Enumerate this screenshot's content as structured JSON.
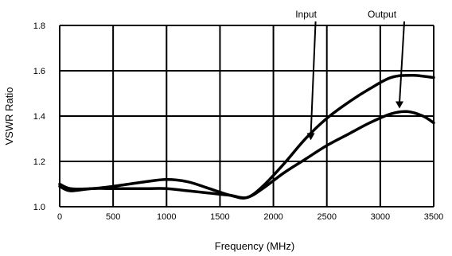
{
  "chart_data": {
    "type": "line",
    "xlabel": "Frequency (MHz)",
    "ylabel": "VSWR Ratio",
    "xlim": [
      0,
      3500
    ],
    "ylim": [
      1.0,
      1.8
    ],
    "xticks": [
      0,
      500,
      1000,
      1500,
      2000,
      2500,
      3000,
      3500
    ],
    "yticks": [
      1.0,
      1.2,
      1.4,
      1.6,
      1.8
    ],
    "xtick_labels": [
      "0",
      "500",
      "1000",
      "1500",
      "2000",
      "2500",
      "3000",
      "3500"
    ],
    "ytick_labels": [
      "1.0",
      "1.2",
      "1.4",
      "1.6",
      "1.8"
    ],
    "grid": true,
    "series": [
      {
        "name": "Input",
        "x": [
          0,
          100,
          300,
          500,
          800,
          1000,
          1200,
          1400,
          1600,
          1750,
          1900,
          2100,
          2300,
          2500,
          2700,
          2900,
          3100,
          3300,
          3500
        ],
        "y": [
          1.1,
          1.08,
          1.08,
          1.09,
          1.11,
          1.12,
          1.11,
          1.08,
          1.05,
          1.04,
          1.09,
          1.19,
          1.3,
          1.39,
          1.46,
          1.52,
          1.57,
          1.58,
          1.57
        ]
      },
      {
        "name": "Output",
        "x": [
          0,
          100,
          300,
          500,
          800,
          1000,
          1200,
          1400,
          1600,
          1750,
          1900,
          2100,
          2300,
          2500,
          2700,
          2900,
          3100,
          3250,
          3400,
          3500
        ],
        "y": [
          1.09,
          1.07,
          1.08,
          1.08,
          1.08,
          1.08,
          1.07,
          1.06,
          1.05,
          1.04,
          1.08,
          1.15,
          1.21,
          1.27,
          1.32,
          1.37,
          1.41,
          1.42,
          1.4,
          1.37
        ]
      }
    ],
    "annotations": [
      {
        "text": "Input",
        "series": 0,
        "x": 2350,
        "y": 1.29
      },
      {
        "text": "Output",
        "series": 1,
        "x": 3180,
        "y": 1.43
      }
    ]
  }
}
